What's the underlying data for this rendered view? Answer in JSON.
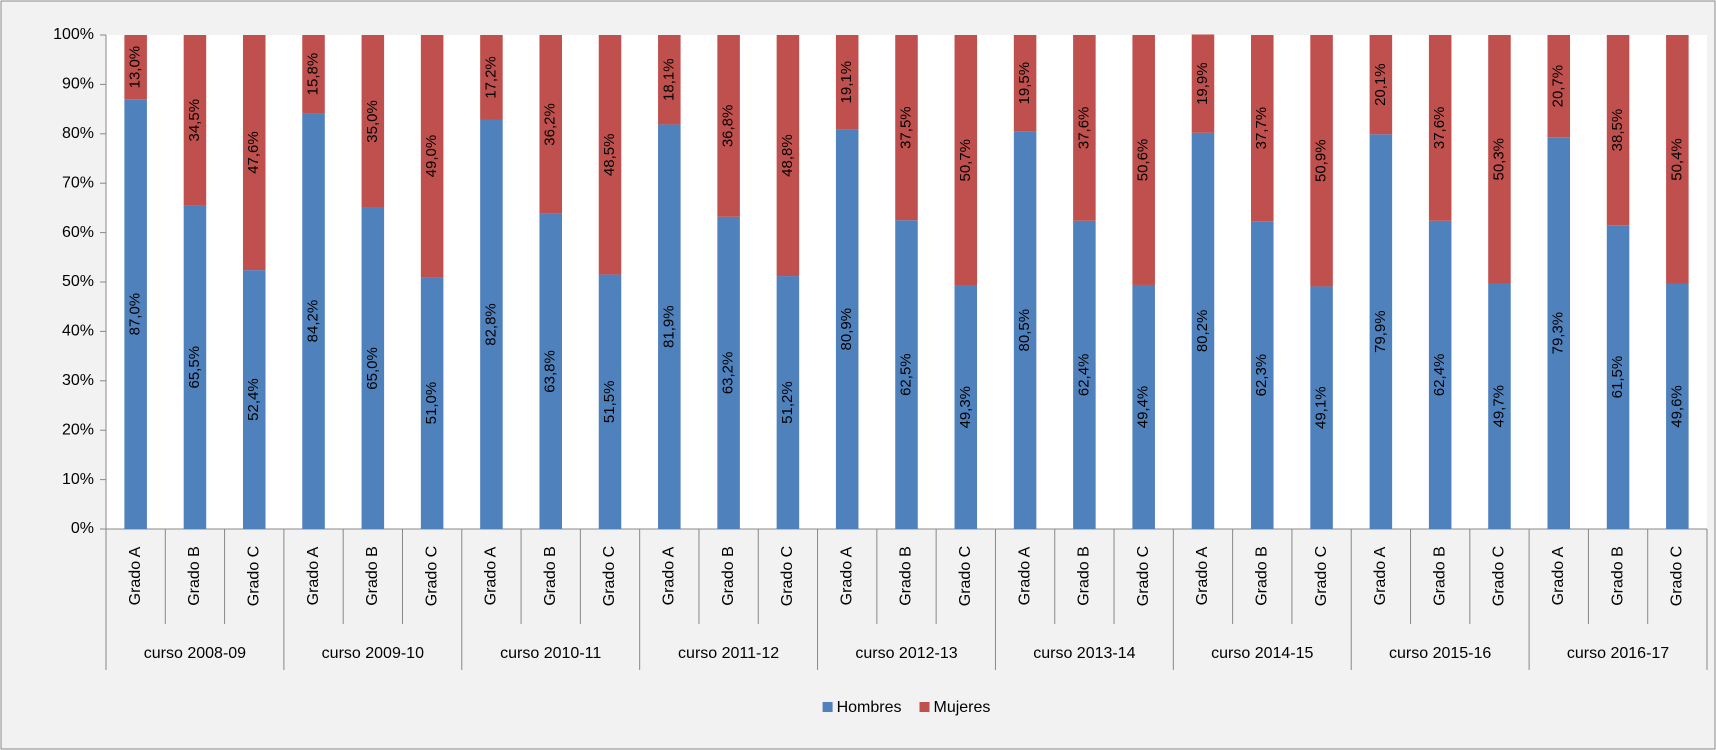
{
  "chart_data": {
    "type": "stacked_bar",
    "categories": [
      "Grado A",
      "Grado B",
      "Grado C",
      "Grado A",
      "Grado B",
      "Grado C",
      "Grado A",
      "Grado B",
      "Grado C",
      "Grado A",
      "Grado B",
      "Grado C",
      "Grado A",
      "Grado B",
      "Grado C",
      "Grado A",
      "Grado B",
      "Grado C",
      "Grado A",
      "Grado B",
      "Grado C",
      "Grado A",
      "Grado B",
      "Grado C",
      "Grado A",
      "Grado B",
      "Grado C"
    ],
    "category_groups": [
      "curso 2008-09",
      "curso 2009-10",
      "curso 2010-11",
      "curso 2011-12",
      "curso 2012-13",
      "curso 2013-14",
      "curso 2014-15",
      "curso 2015-16",
      "curso 2016-17"
    ],
    "series": [
      {
        "name": "Hombres",
        "color": "#4f81bd",
        "values": [
          87.0,
          65.5,
          52.4,
          84.2,
          65.0,
          51.0,
          82.8,
          63.8,
          51.5,
          81.9,
          63.2,
          51.2,
          80.9,
          62.5,
          49.3,
          80.5,
          62.4,
          49.4,
          80.2,
          62.3,
          49.1,
          79.9,
          62.4,
          49.7,
          79.3,
          61.5,
          49.6
        ],
        "value_labels": [
          "87,0%",
          "65,5%",
          "52,4%",
          "84,2%",
          "65,0%",
          "51,0%",
          "82,8%",
          "63,8%",
          "51,5%",
          "81,9%",
          "63,2%",
          "51,2%",
          "80,9%",
          "62,5%",
          "49,3%",
          "80,5%",
          "62,4%",
          "49,4%",
          "80,2%",
          "62,3%",
          "49,1%",
          "79,9%",
          "62,4%",
          "49,7%",
          "79,3%",
          "61,5%",
          "49,6%"
        ]
      },
      {
        "name": "Mujeres",
        "color": "#c0504d",
        "values": [
          13.0,
          34.5,
          47.6,
          15.8,
          35.0,
          49.0,
          17.2,
          36.2,
          48.5,
          18.1,
          36.8,
          48.8,
          19.1,
          37.5,
          50.7,
          19.5,
          37.6,
          50.6,
          19.9,
          37.7,
          50.9,
          20.1,
          37.6,
          50.3,
          20.7,
          38.5,
          50.4
        ],
        "value_labels": [
          "13,0%",
          "34,5%",
          "47,6%",
          "15,8%",
          "35,0%",
          "49,0%",
          "17,2%",
          "36,2%",
          "48,5%",
          "18,1%",
          "36,8%",
          "48,8%",
          "19,1%",
          "37,5%",
          "50,7%",
          "19,5%",
          "37,6%",
          "50,6%",
          "19,9%",
          "37,7%",
          "50,9%",
          "20,1%",
          "37,6%",
          "50,3%",
          "20,7%",
          "38,5%",
          "50,4%"
        ]
      }
    ],
    "ylim": [
      0,
      100
    ],
    "yticks": [
      {
        "value": 0,
        "label": "0%"
      },
      {
        "value": 10,
        "label": "10%"
      },
      {
        "value": 20,
        "label": "20%"
      },
      {
        "value": 30,
        "label": "30%"
      },
      {
        "value": 40,
        "label": "40%"
      },
      {
        "value": 50,
        "label": "50%"
      },
      {
        "value": 60,
        "label": "60%"
      },
      {
        "value": 70,
        "label": "70%"
      },
      {
        "value": 80,
        "label": "80%"
      },
      {
        "value": 90,
        "label": "90%"
      },
      {
        "value": 100,
        "label": "100%"
      }
    ],
    "grid": false,
    "legend": "bottom"
  }
}
